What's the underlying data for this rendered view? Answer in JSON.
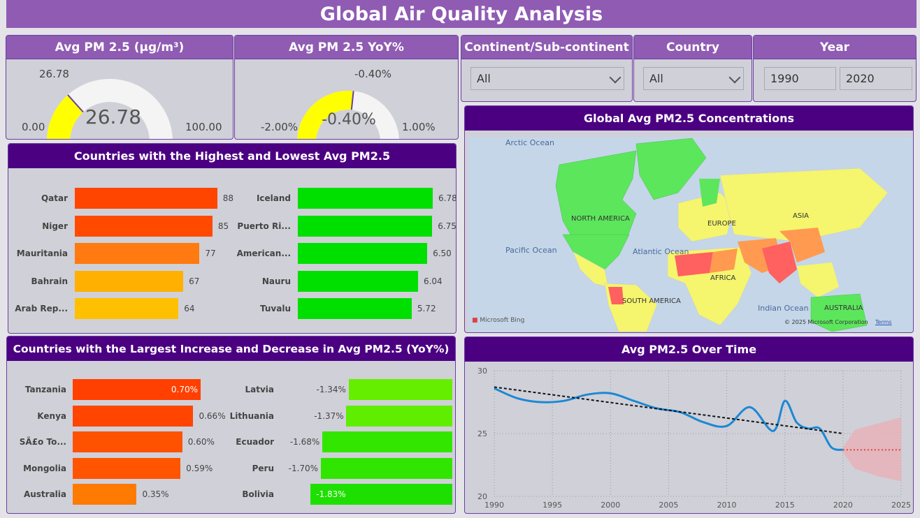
{
  "title": "Global Air Quality Analysis",
  "colors": {
    "purple_light": "#8f5bb3",
    "purple_dark": "#4b0082",
    "gauge_fill": "#ffff00",
    "gauge_bg": "#f4f4f4",
    "line": "#1b88d4",
    "forecast_band": "#e8b0b8",
    "forecast_line": "#e04040"
  },
  "gauge_pm": {
    "title": "Avg PM 2.5 (µg/m³)",
    "value": 26.78,
    "value_label": "26.78",
    "min_label": "0.00",
    "max_label": "100.00",
    "target_label": "26.78",
    "min": 0,
    "max": 100
  },
  "gauge_yoy": {
    "title": "Avg PM 2.5 YoY%",
    "value": -0.4,
    "value_label": "-0.40%",
    "min_label": "-2.00%",
    "max_label": "1.00%",
    "target_label": "-0.40%",
    "min": -2.0,
    "max": 1.0
  },
  "slicers": {
    "continent": {
      "title": "Continent/Sub-continent",
      "value": "All"
    },
    "country": {
      "title": "Country",
      "value": "All"
    },
    "year": {
      "title": "Year",
      "from": "1990",
      "to": "2020"
    }
  },
  "map": {
    "title": "Global Avg PM2.5 Concentrations",
    "labels": {
      "arctic": "Arctic Ocean",
      "pacific": "Pacific Ocean",
      "atlantic": "Atlantic Ocean",
      "indian": "Indian Ocean",
      "north_america": "NORTH AMERICA",
      "south_america": "SOUTH AMERICA",
      "europe": "EUROPE",
      "asia": "ASIA",
      "africa": "AFRICA",
      "australia": "AUSTRALIA"
    },
    "credit": "Microsoft Bing",
    "copyright": "© 2025 Microsoft Corporation",
    "terms": "Terms"
  },
  "highest_lowest": {
    "title": "Countries with the Highest and Lowest Avg PM2.5",
    "highest": [
      {
        "country": "Qatar",
        "value": 88,
        "label": "88",
        "color": "#ff4500"
      },
      {
        "country": "Niger",
        "value": 85,
        "label": "85",
        "color": "#ff4a00"
      },
      {
        "country": "Mauritania",
        "value": 77,
        "label": "77",
        "color": "#ff7a10"
      },
      {
        "country": "Bahrain",
        "value": 67,
        "label": "67",
        "color": "#ffb000"
      },
      {
        "country": "Arab Rep...",
        "value": 64,
        "label": "64",
        "color": "#ffc000"
      }
    ],
    "lowest": [
      {
        "country": "Iceland",
        "value": 6.78,
        "label": "6.78",
        "color": "#00e000"
      },
      {
        "country": "Puerto Ri...",
        "value": 6.75,
        "label": "6.75",
        "color": "#00e000"
      },
      {
        "country": "American...",
        "value": 6.5,
        "label": "6.50",
        "color": "#00e000"
      },
      {
        "country": "Nauru",
        "value": 6.04,
        "label": "6.04",
        "color": "#00e000"
      },
      {
        "country": "Tuvalu",
        "value": 5.72,
        "label": "5.72",
        "color": "#00e000"
      }
    ]
  },
  "increase_decrease": {
    "title": "Countries with the Largest Increase and Decrease in Avg PM2.5 (YoY%)",
    "increase": [
      {
        "country": "Tanzania",
        "value": 0.7,
        "label": "0.70%",
        "color": "#ff4000",
        "inside": true
      },
      {
        "country": "Kenya",
        "value": 0.66,
        "label": "0.66%",
        "color": "#ff4500",
        "inside": false
      },
      {
        "country": "SÃ£o To...",
        "value": 0.6,
        "label": "0.60%",
        "color": "#ff5200",
        "inside": false
      },
      {
        "country": "Mongolia",
        "value": 0.59,
        "label": "0.59%",
        "color": "#ff5500",
        "inside": false
      },
      {
        "country": "Australia",
        "value": 0.35,
        "label": "0.35%",
        "color": "#ff7a00",
        "inside": false
      }
    ],
    "decrease": [
      {
        "country": "Latvia",
        "value": -1.34,
        "label": "-1.34%",
        "color": "#66ee00",
        "inside": false
      },
      {
        "country": "Lithuania",
        "value": -1.37,
        "label": "-1.37%",
        "color": "#60ee00",
        "inside": false
      },
      {
        "country": "Ecuador",
        "value": -1.68,
        "label": "-1.68%",
        "color": "#33e600",
        "inside": false
      },
      {
        "country": "Peru",
        "value": -1.7,
        "label": "-1.70%",
        "color": "#30e600",
        "inside": false
      },
      {
        "country": "Bolivia",
        "value": -1.83,
        "label": "-1.83%",
        "color": "#1ee000",
        "inside": true
      }
    ]
  },
  "chart_data": {
    "type": "line",
    "title": "Avg PM2.5 Over Time",
    "xlabel": "",
    "ylabel": "",
    "xlim": [
      1990,
      2025
    ],
    "ylim": [
      20,
      30
    ],
    "xticks": [
      1990,
      1995,
      2000,
      2005,
      2010,
      2015,
      2020,
      2025
    ],
    "yticks": [
      20,
      25,
      30
    ],
    "grid": true,
    "series": [
      {
        "values_x": [
          1990,
          1992,
          1994,
          1996,
          1998,
          2000,
          2002,
          2004,
          2006,
          2008,
          2010,
          2012,
          2014,
          2015,
          2016,
          2017,
          2018,
          2019,
          2020
        ],
        "values_y": [
          28.6,
          27.8,
          27.5,
          27.6,
          28.1,
          28.2,
          27.6,
          27.0,
          26.7,
          25.9,
          25.6,
          27.1,
          25.2,
          27.6,
          25.9,
          25.4,
          25.4,
          23.9,
          23.7
        ]
      },
      {
        "values_x": [
          1990,
          2020
        ],
        "values_y": [
          28.7,
          25.0
        ]
      },
      {
        "values_x": [
          2020,
          2025
        ],
        "values_y": [
          23.7,
          23.7
        ]
      }
    ],
    "forecast_band": {
      "x": [
        2020,
        2021,
        2023,
        2025
      ],
      "upper": [
        23.9,
        25.3,
        25.8,
        26.3
      ],
      "lower": [
        23.5,
        22.2,
        21.6,
        21.2
      ]
    }
  }
}
